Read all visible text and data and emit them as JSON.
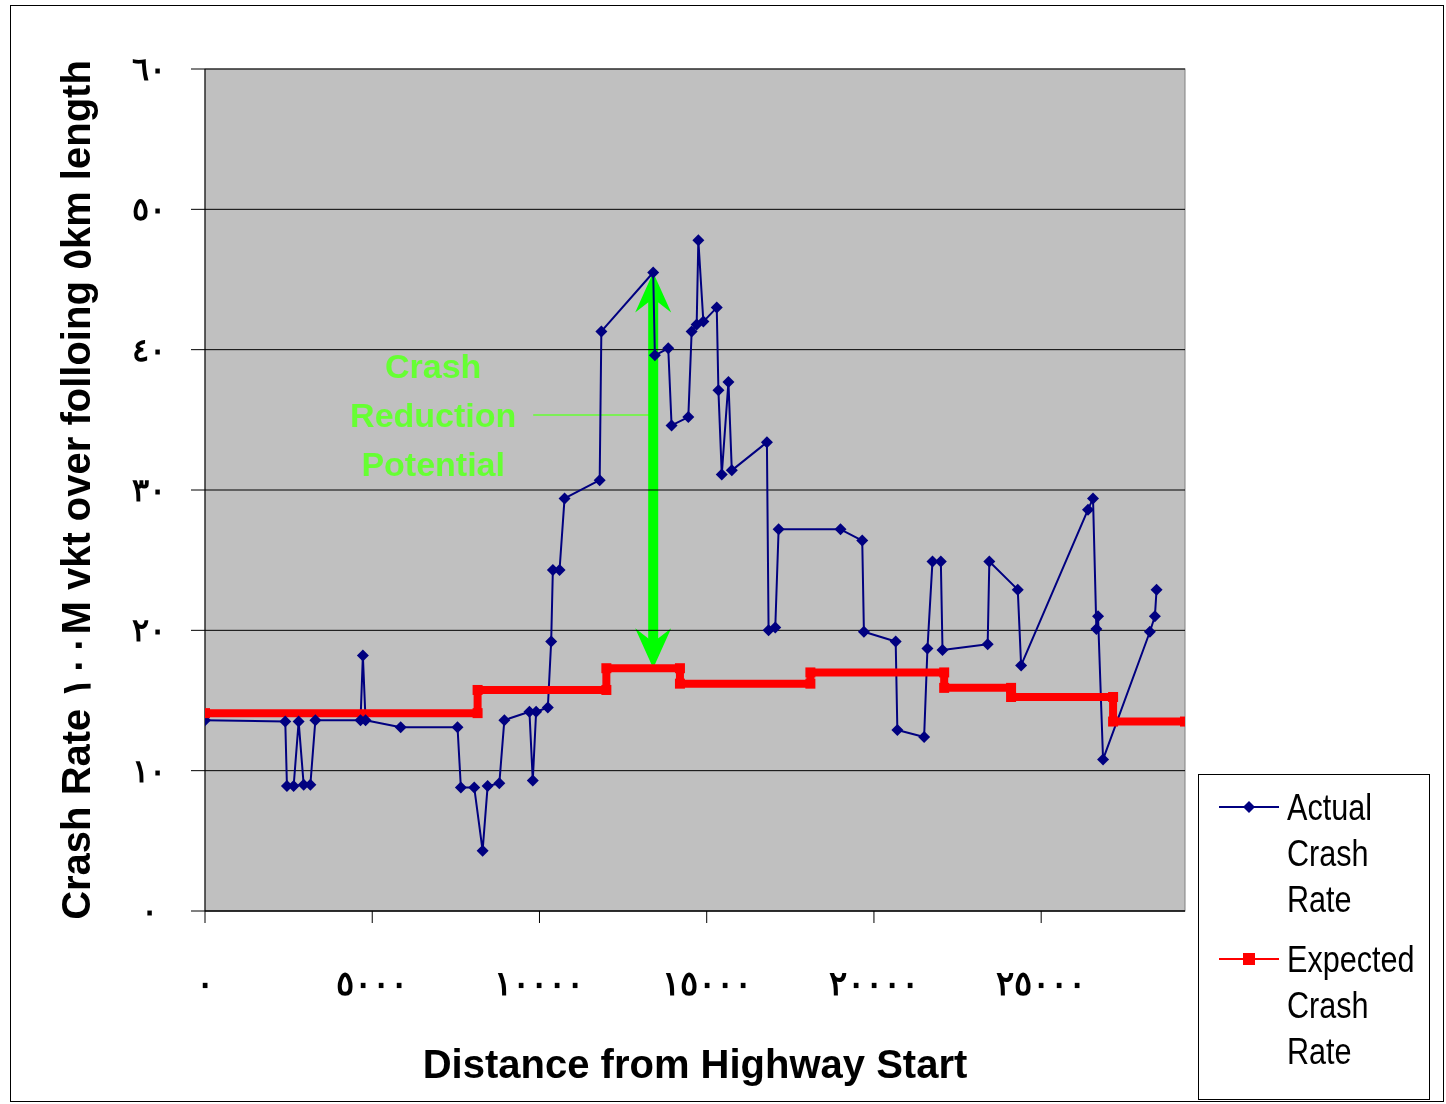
{
  "chart_data": {
    "type": "line",
    "xlabel": "Distance from Highway Start",
    "ylabel": "Crash Rate ١٠٠M vkt over folloing ٥km length",
    "xlim": [
      0,
      29300
    ],
    "ylim": [
      0,
      60
    ],
    "xticks": [
      {
        "value": 0,
        "label": "٠"
      },
      {
        "value": 5000,
        "label": "٥٠٠٠"
      },
      {
        "value": 10000,
        "label": "١٠٠٠٠"
      },
      {
        "value": 15000,
        "label": "١٥٠٠٠"
      },
      {
        "value": 20000,
        "label": "٢٠٠٠٠"
      },
      {
        "value": 25000,
        "label": "٢٥٠٠٠"
      }
    ],
    "yticks": [
      {
        "value": 0,
        "label": "٠"
      },
      {
        "value": 10,
        "label": "١٠"
      },
      {
        "value": 20,
        "label": "٢٠"
      },
      {
        "value": 30,
        "label": "٣٠"
      },
      {
        "value": 40,
        "label": "٤٠"
      },
      {
        "value": 50,
        "label": "٥٠"
      },
      {
        "value": 60,
        "label": "٦٠"
      }
    ],
    "grid": "y",
    "legend": "bottom right",
    "annotations": [
      "Crash Reduction Potential"
    ],
    "series": [
      {
        "name": "Actual Crash Rate",
        "color": "#000080",
        "marker": "diamond",
        "x": [
          0,
          2400,
          2450,
          2650,
          2800,
          2950,
          3150,
          3300,
          4650,
          4720,
          4800,
          5850,
          7550,
          7650,
          8050,
          8300,
          8450,
          8800,
          8950,
          9700,
          9800,
          9900,
          10250,
          10350,
          10400,
          10600,
          10750,
          11800,
          11850,
          13400,
          13450,
          13850,
          13950,
          14450,
          14550,
          14700,
          14750,
          14900,
          15300,
          15350,
          15450,
          15650,
          15750,
          16800,
          16850,
          17050,
          17150,
          19000,
          19650,
          19700,
          20650,
          20700,
          21500,
          21600,
          21750,
          22000,
          22050,
          23400,
          23450,
          24300,
          24400,
          26400,
          26550,
          26650,
          26700,
          26850,
          28250,
          28400,
          28450
        ],
        "values": [
          13.6,
          13.5,
          8.9,
          8.9,
          13.5,
          9.0,
          9.0,
          13.6,
          13.6,
          18.2,
          13.6,
          13.1,
          13.1,
          8.8,
          8.8,
          4.3,
          8.9,
          9.1,
          13.6,
          14.2,
          9.3,
          14.2,
          14.5,
          19.2,
          24.3,
          24.3,
          29.4,
          30.7,
          41.3,
          45.5,
          39.6,
          40.1,
          34.6,
          35.2,
          41.3,
          41.8,
          47.8,
          42.0,
          43.0,
          37.1,
          31.1,
          37.7,
          31.4,
          33.4,
          20.0,
          20.2,
          27.2,
          27.2,
          26.4,
          19.9,
          19.2,
          12.9,
          12.4,
          18.7,
          24.9,
          24.9,
          18.6,
          19.0,
          24.9,
          22.9,
          17.5,
          28.6,
          29.4,
          20.1,
          21.0,
          10.8,
          19.9,
          21.0,
          22.9
        ]
      },
      {
        "name": "Expected Crash Rate",
        "color": "#ff0000",
        "marker": "square",
        "x": [
          0,
          8150,
          8150,
          12000,
          12000,
          14200,
          14200,
          18100,
          18100,
          22100,
          22100,
          24100,
          24100,
          27150,
          27150,
          29300
        ],
        "values": [
          14.1,
          14.1,
          15.75,
          15.75,
          17.3,
          17.3,
          16.2,
          16.2,
          17.0,
          17.0,
          15.9,
          15.9,
          15.25,
          15.25,
          13.5,
          13.5
        ]
      }
    ]
  }
}
